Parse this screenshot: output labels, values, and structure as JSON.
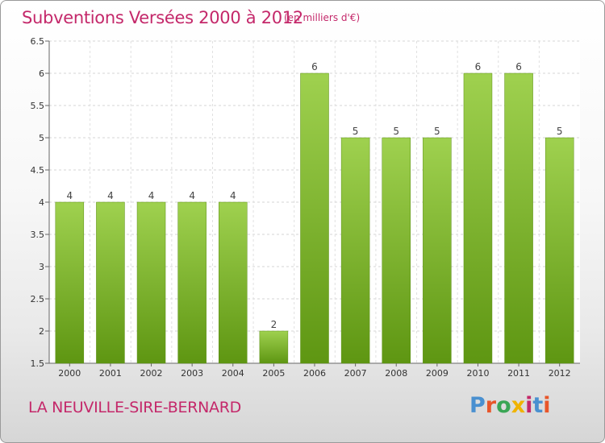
{
  "header": {
    "title": "Subventions Versées 2000 à 2012",
    "subtitle": "(en milliers d'€)"
  },
  "footer": {
    "place": "LA NEUVILLE-SIRE-BERNARD",
    "logo_text": "Proxiti",
    "logo_colors": [
      "#4a90d0",
      "#e8562a",
      "#3aa655",
      "#f0b300",
      "#c4286a",
      "#4a90d0",
      "#e8562a"
    ]
  },
  "chart_data": {
    "type": "bar",
    "categories": [
      "2000",
      "2001",
      "2002",
      "2003",
      "2004",
      "2005",
      "2006",
      "2007",
      "2008",
      "2009",
      "2010",
      "2011",
      "2012"
    ],
    "values": [
      4,
      4,
      4,
      4,
      4,
      2,
      6,
      5,
      5,
      5,
      6,
      6,
      5
    ],
    "data_labels": [
      "4",
      "4",
      "4",
      "4",
      "4",
      "2",
      "6",
      "5",
      "5",
      "5",
      "6",
      "6",
      "5"
    ],
    "title": "Subventions Versées 2000 à 2012",
    "ylim": [
      1.5,
      6.5
    ],
    "yticks": [
      "1.5",
      "2",
      "2.5",
      "3",
      "3.5",
      "4",
      "4.5",
      "5",
      "5.5",
      "6",
      "6.5"
    ],
    "grid": true,
    "bar_color": "#7fb53a"
  }
}
